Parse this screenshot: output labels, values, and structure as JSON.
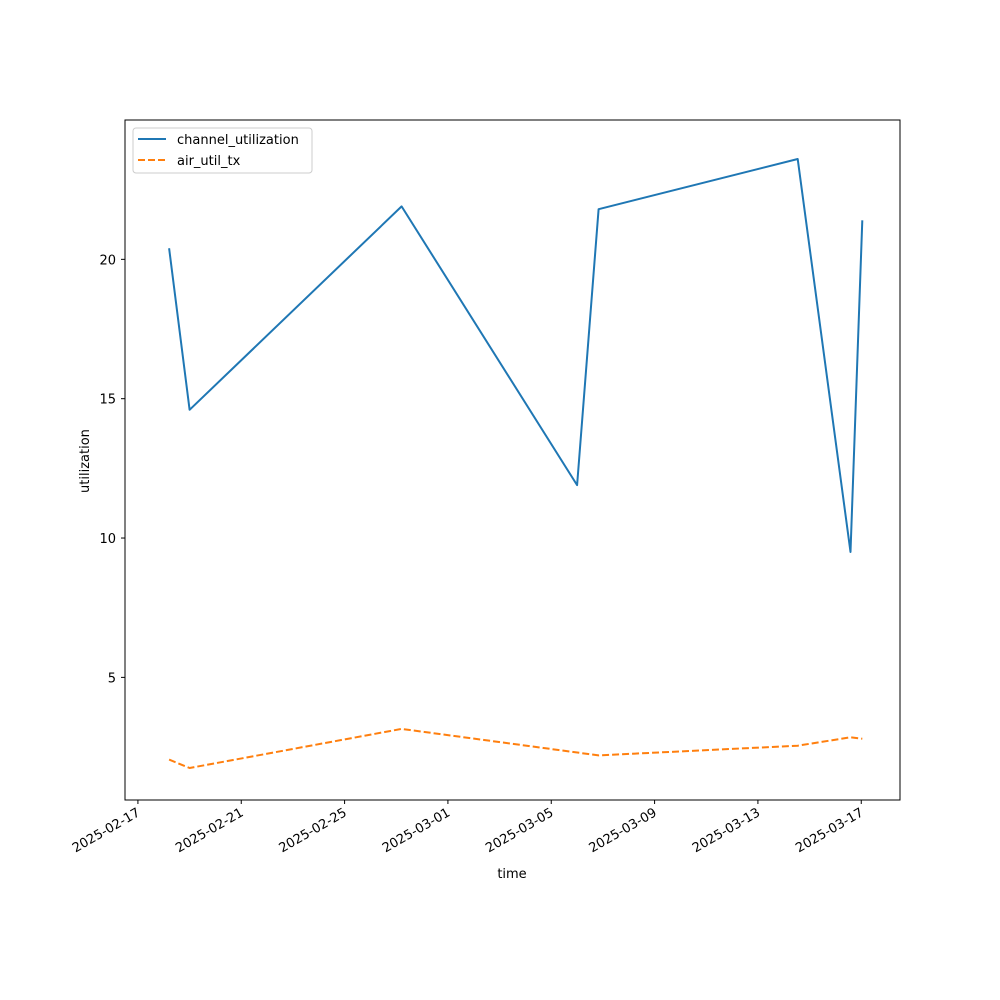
{
  "chart_data": {
    "type": "line",
    "xlabel": "time",
    "ylabel": "utilization",
    "x_tick_labels": [
      "2025-02-17",
      "2025-02-21",
      "2025-02-25",
      "2025-03-01",
      "2025-03-05",
      "2025-03-09",
      "2025-03-13",
      "2025-03-17"
    ],
    "y_ticks": [
      5,
      10,
      15,
      20
    ],
    "xlim": [
      "2025-02-16T12:00",
      "2025-03-18T12:00"
    ],
    "ylim": [
      0.6,
      25.0
    ],
    "grid": false,
    "legend_position": "top-left",
    "series": [
      {
        "name": "channel_utilization",
        "color": "#1f77b4",
        "style": "solid",
        "points": [
          {
            "x": "2025-02-18T05:00",
            "y": 20.4
          },
          {
            "x": "2025-02-19T00:00",
            "y": 14.6
          },
          {
            "x": "2025-02-27T05:00",
            "y": 21.9
          },
          {
            "x": "2025-03-06T00:00",
            "y": 11.9
          },
          {
            "x": "2025-03-06T20:00",
            "y": 21.8
          },
          {
            "x": "2025-03-14T13:00",
            "y": 23.6
          },
          {
            "x": "2025-03-16T14:00",
            "y": 9.5
          },
          {
            "x": "2025-03-17T01:00",
            "y": 21.4
          }
        ]
      },
      {
        "name": "air_util_tx",
        "color": "#ff7f0e",
        "style": "dashed",
        "points": [
          {
            "x": "2025-02-18T05:00",
            "y": 2.05
          },
          {
            "x": "2025-02-19T00:00",
            "y": 1.75
          },
          {
            "x": "2025-02-27T05:00",
            "y": 3.15
          },
          {
            "x": "2025-03-06T20:00",
            "y": 2.2
          },
          {
            "x": "2025-03-14T13:00",
            "y": 2.55
          },
          {
            "x": "2025-03-16T14:00",
            "y": 2.85
          },
          {
            "x": "2025-03-17T01:00",
            "y": 2.8
          }
        ]
      }
    ]
  }
}
